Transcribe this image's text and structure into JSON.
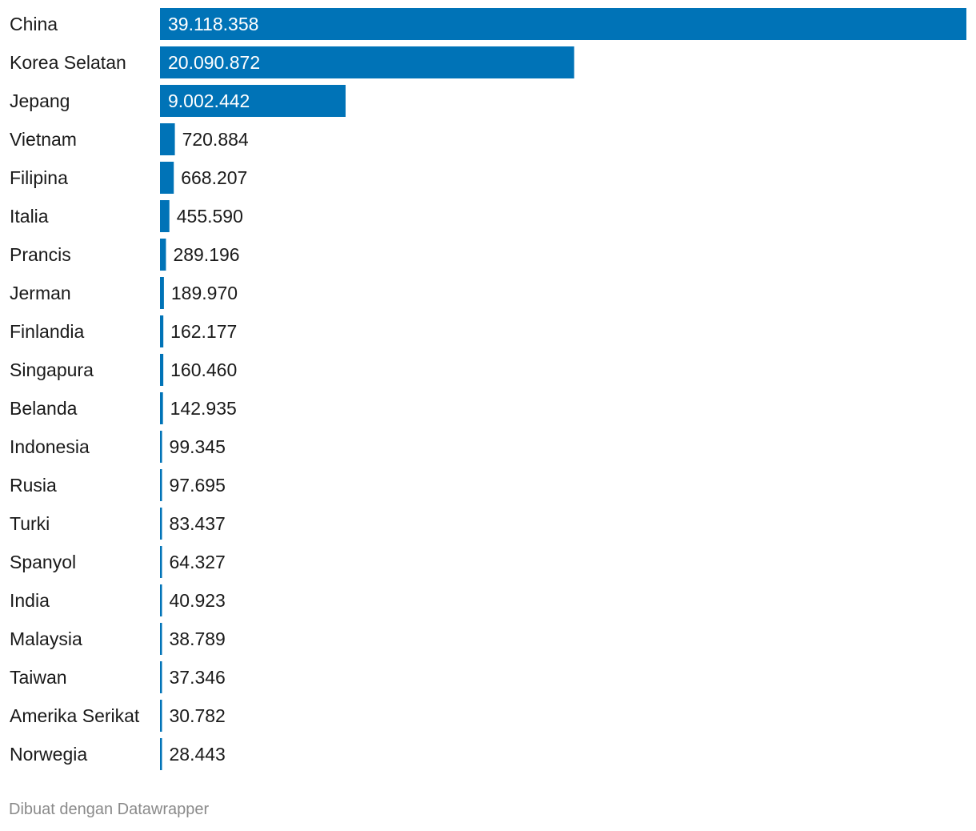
{
  "chart_data": {
    "type": "bar",
    "orientation": "horizontal",
    "categories": [
      "China",
      "Korea Selatan",
      "Jepang",
      "Vietnam",
      "Filipina",
      "Italia",
      "Prancis",
      "Jerman",
      "Finlandia",
      "Singapura",
      "Belanda",
      "Indonesia",
      "Rusia",
      "Turki",
      "Spanyol",
      "India",
      "Malaysia",
      "Taiwan",
      "Amerika Serikat",
      "Norwegia"
    ],
    "values": [
      39118358,
      20090872,
      9002442,
      720884,
      668207,
      455590,
      289196,
      189970,
      162177,
      160460,
      142935,
      99345,
      97695,
      83437,
      64327,
      40923,
      38789,
      37346,
      30782,
      28443
    ],
    "value_labels": [
      "39.118.358",
      "20.090.872",
      "9.002.442",
      "720.884",
      "668.207",
      "455.590",
      "289.196",
      "189.970",
      "162.177",
      "160.460",
      "142.935",
      "99.345",
      "97.695",
      "83.437",
      "64.327",
      "40.923",
      "38.789",
      "37.346",
      "30.782",
      "28.443"
    ],
    "xlim": [
      0,
      39118358
    ],
    "bar_color": "#0073b7",
    "title": "",
    "xlabel": "",
    "ylabel": ""
  },
  "footer": {
    "credit": "Dibuat dengan Datawrapper"
  }
}
